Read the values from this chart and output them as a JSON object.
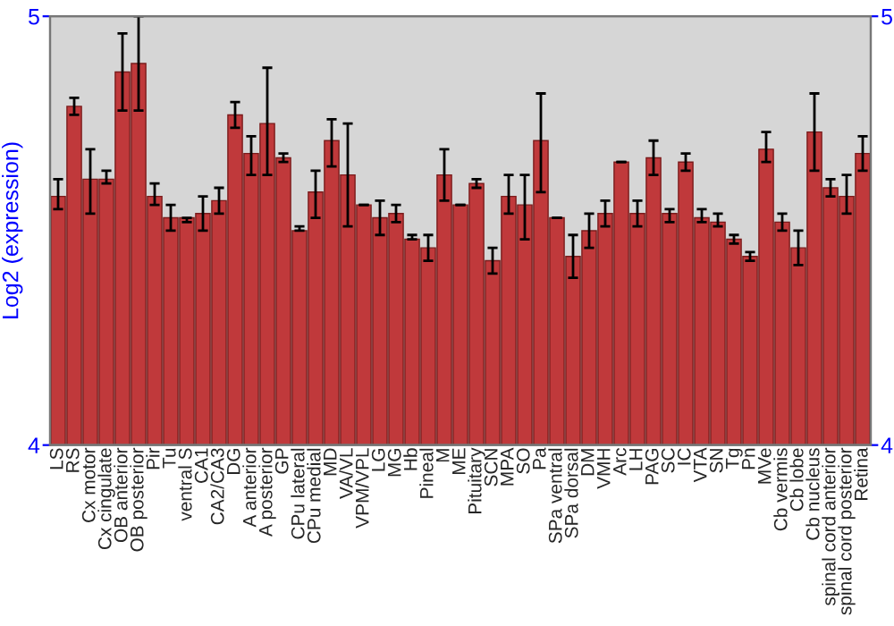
{
  "chart_data": {
    "type": "bar",
    "ylabel": "Log2 (expression)",
    "categories": [
      "LS",
      "RS",
      "Cx motor",
      "Cx cingulate",
      "OB anterior",
      "OB posterior",
      "Pir",
      "Tu",
      "ventral S",
      "CA1",
      "CA2/CA3",
      "DG",
      "A anterior",
      "A posterior",
      "GP",
      "CPu lateral",
      "CPu medial",
      "MD",
      "VA/VL",
      "VPM/VPL",
      "LG",
      "MG",
      "Hb",
      "Pineal",
      "M",
      "ME",
      "Pituitary",
      "SCN",
      "MPA",
      "SO",
      "Pa",
      "SPa ventral",
      "SPa dorsal",
      "DM",
      "VMH",
      "Arc",
      "LH",
      "PAG",
      "SC",
      "IC",
      "VTA",
      "SN",
      "Tg",
      "Pn",
      "MVe",
      "Cb vermis",
      "Cb lobe",
      "Cb nucleus",
      "spinal cord anterior",
      "spinal cord posterior",
      "Retina"
    ],
    "values": [
      4.58,
      4.79,
      4.62,
      4.62,
      4.87,
      4.89,
      4.58,
      4.53,
      4.53,
      4.54,
      4.57,
      4.77,
      4.68,
      4.75,
      4.67,
      4.5,
      4.59,
      4.71,
      4.63,
      4.56,
      4.53,
      4.54,
      4.48,
      4.46,
      4.63,
      4.56,
      4.61,
      4.43,
      4.58,
      4.56,
      4.71,
      4.53,
      4.44,
      4.5,
      4.54,
      4.66,
      4.54,
      4.67,
      4.54,
      4.66,
      4.53,
      4.52,
      4.48,
      4.44,
      4.69,
      4.52,
      4.46,
      4.73,
      4.6,
      4.58,
      4.68
    ],
    "errors": [
      [
        4.55,
        4.62
      ],
      [
        4.77,
        4.81
      ],
      [
        4.54,
        4.69
      ],
      [
        4.61,
        4.64
      ],
      [
        4.78,
        4.96
      ],
      [
        4.78,
        5.0
      ],
      [
        4.56,
        4.61
      ],
      [
        4.5,
        4.56
      ],
      [
        4.52,
        4.53
      ],
      [
        4.5,
        4.58
      ],
      [
        4.54,
        4.6
      ],
      [
        4.74,
        4.8
      ],
      [
        4.63,
        4.72
      ],
      [
        4.63,
        4.88
      ],
      [
        4.66,
        4.68
      ],
      [
        4.5,
        4.51
      ],
      [
        4.53,
        4.64
      ],
      [
        4.65,
        4.76
      ],
      [
        4.51,
        4.75
      ],
      [
        4.56,
        4.56
      ],
      [
        4.49,
        4.57
      ],
      [
        4.52,
        4.56
      ],
      [
        4.48,
        4.49
      ],
      [
        4.43,
        4.49
      ],
      [
        4.57,
        4.69
      ],
      [
        4.56,
        4.56
      ],
      [
        4.6,
        4.62
      ],
      [
        4.4,
        4.46
      ],
      [
        4.54,
        4.63
      ],
      [
        4.48,
        4.63
      ],
      [
        4.59,
        4.82
      ],
      [
        4.53,
        4.53
      ],
      [
        4.39,
        4.49
      ],
      [
        4.46,
        4.54
      ],
      [
        4.51,
        4.57
      ],
      [
        4.66,
        4.66
      ],
      [
        4.51,
        4.57
      ],
      [
        4.63,
        4.71
      ],
      [
        4.52,
        4.55
      ],
      [
        4.64,
        4.68
      ],
      [
        4.52,
        4.55
      ],
      [
        4.51,
        4.54
      ],
      [
        4.47,
        4.49
      ],
      [
        4.43,
        4.45
      ],
      [
        4.66,
        4.73
      ],
      [
        4.5,
        4.54
      ],
      [
        4.42,
        4.5
      ],
      [
        4.64,
        4.82
      ],
      [
        4.58,
        4.62
      ],
      [
        4.54,
        4.63
      ],
      [
        4.64,
        4.72
      ]
    ],
    "color": "#c0393b",
    "ylim": [
      4,
      5
    ],
    "yticks": [
      4,
      5
    ],
    "y2lim": [
      4,
      5
    ],
    "y2ticks": [
      4,
      5
    ],
    "grid": false,
    "legend": false
  }
}
